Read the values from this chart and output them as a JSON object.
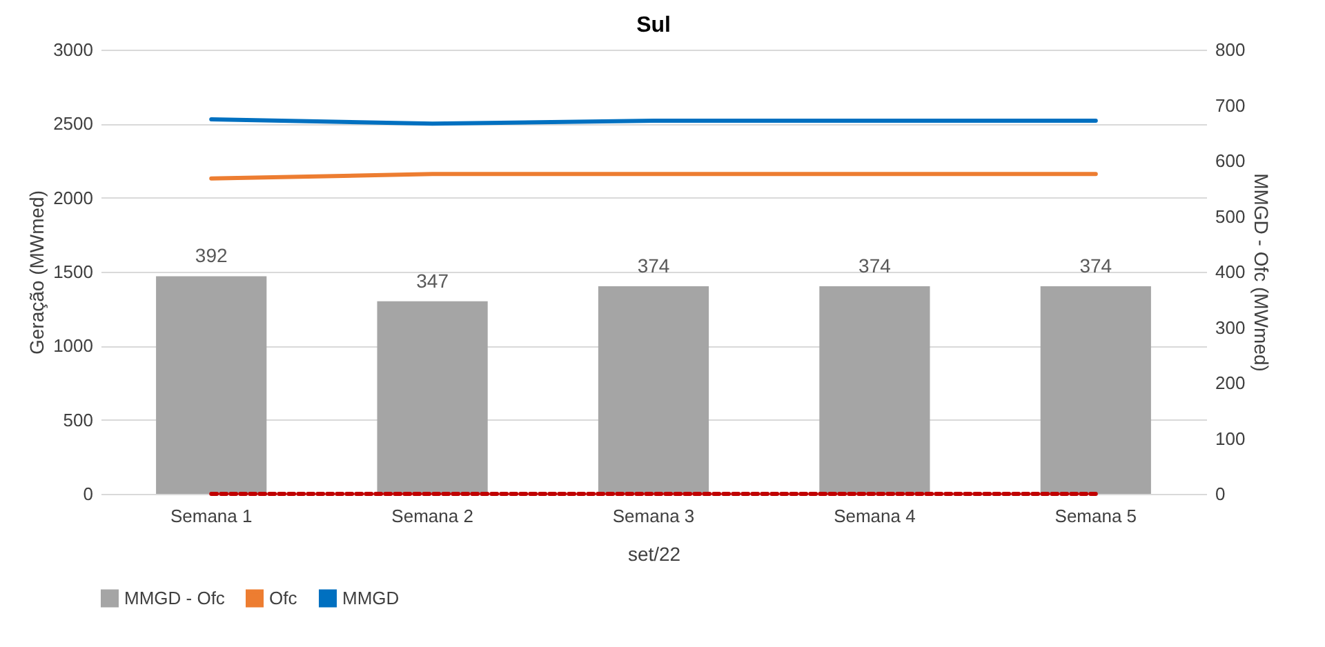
{
  "chart_data": {
    "type": "bar",
    "title": "Sul",
    "xlabel": "set/22",
    "ylabel": "Geração (MWmed)",
    "y2label": "MMGD - Ofc (MWmed)",
    "categories": [
      "Semana 1",
      "Semana 2",
      "Semana 3",
      "Semana 4",
      "Semana 5"
    ],
    "series": [
      {
        "name": "MMGD - Ofc",
        "axis": "y2",
        "color": "#a5a5a5",
        "values": [
          392,
          347,
          374,
          374,
          374
        ],
        "value_labels": [
          "392",
          "347",
          "374",
          "374",
          "374"
        ]
      },
      {
        "name": "Ofc",
        "type": "line",
        "axis": "y",
        "color": "#ed7d31",
        "values": [
          2130,
          2160,
          2160,
          2160,
          2160
        ]
      },
      {
        "name": "MMGD",
        "type": "line",
        "axis": "y",
        "color": "#0070c0",
        "values": [
          2530,
          2500,
          2520,
          2520,
          2520
        ]
      },
      {
        "type": "line",
        "axis": "y2",
        "color": "#c00000",
        "line_style": "dashed",
        "values": [
          0,
          0,
          0,
          0,
          0
        ]
      }
    ],
    "ylim": [
      0,
      3000
    ],
    "yticks": [
      0,
      500,
      1000,
      1500,
      2000,
      2500,
      3000
    ],
    "y2lim": [
      0,
      800
    ],
    "y2ticks": [
      0,
      100,
      200,
      300,
      400,
      500,
      600,
      700,
      800
    ],
    "grid": "y",
    "legend": "bottom"
  }
}
